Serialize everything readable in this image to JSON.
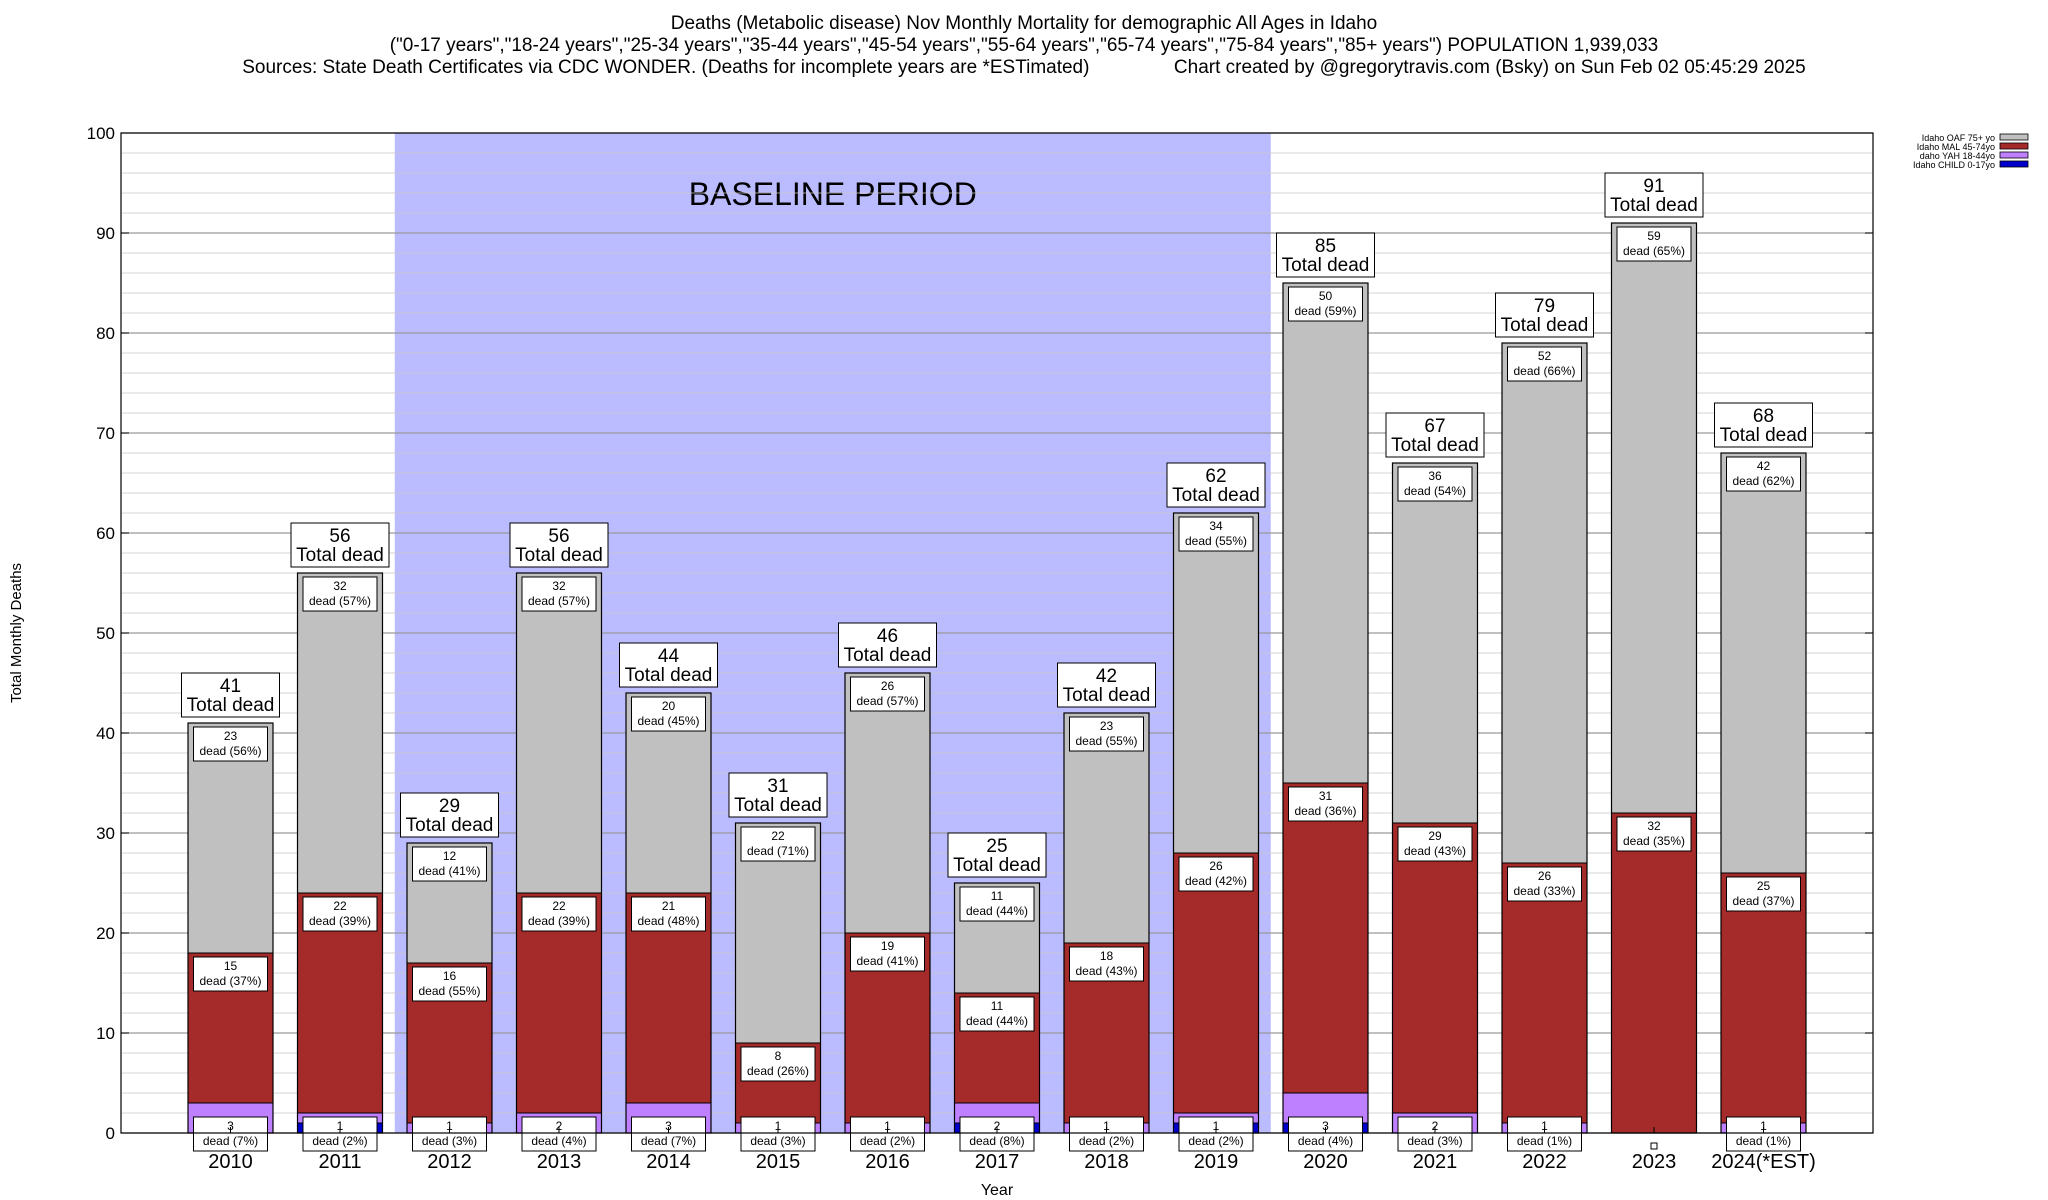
{
  "header": {
    "title_line1": "Deaths (Metabolic disease) Nov Monthly Mortality for demographic All Ages in Idaho",
    "title_line2": "(\"0-17 years\",\"18-24 years\",\"25-34 years\",\"35-44 years\",\"45-54 years\",\"55-64 years\",\"65-74 years\",\"75-84 years\",\"85+ years\") POPULATION 1,939,033",
    "title_line3": "Sources: State Death Certificates via CDC WONDER. (Deaths for incomplete years are *ESTimated)                Chart created by @gregorytravis.com (Bsky) on Sun Feb 02 05:45:29 2025"
  },
  "chart_data": {
    "type": "bar",
    "stacked": true,
    "title": "Deaths (Metabolic disease) Nov Monthly Mortality for demographic All Ages in Idaho",
    "xlabel": "Year",
    "ylabel": "Total Monthly Deaths",
    "ylim": [
      0,
      100
    ],
    "yticks": [
      0,
      10,
      20,
      30,
      40,
      50,
      60,
      70,
      80,
      90,
      100
    ],
    "grid": "horizontal",
    "legend_position": "top-right",
    "categories": [
      "2010",
      "2011",
      "2012",
      "2013",
      "2014",
      "2015",
      "2016",
      "2017",
      "2018",
      "2019",
      "2020",
      "2021",
      "2022",
      "2023",
      "2024(*EST)"
    ],
    "series": [
      {
        "name": "Idaho CHILD 0-17yo",
        "color": "#0000cc",
        "values": [
          0,
          1,
          0,
          0,
          0,
          0,
          0,
          1,
          0,
          1,
          1,
          0,
          0,
          0,
          0
        ]
      },
      {
        "name": "daho YAH 18-44yo",
        "color": "#bf80ff",
        "values": [
          3,
          1,
          1,
          2,
          3,
          1,
          1,
          2,
          1,
          1,
          3,
          2,
          1,
          0,
          1
        ]
      },
      {
        "name": "Idaho MAL 45-74yo",
        "color": "#a52a2a",
        "values": [
          15,
          22,
          16,
          22,
          21,
          8,
          19,
          11,
          18,
          26,
          31,
          29,
          26,
          32,
          25
        ]
      },
      {
        "name": "Idaho OAF 75+ yo",
        "color": "#c0c0c0",
        "values": [
          23,
          32,
          12,
          32,
          20,
          22,
          26,
          11,
          23,
          34,
          50,
          36,
          52,
          59,
          42
        ]
      }
    ],
    "segment_labels": {
      "yah": [
        "3\ndead (7%)",
        "1\ndead (2%)",
        "1\ndead (3%)",
        "2\ndead (4%)",
        "3\ndead (7%)",
        "1\ndead (3%)",
        "1\ndead (2%)",
        "2\ndead (8%)",
        "1\ndead (2%)",
        "1\ndead (2%)",
        "3\ndead (4%)",
        "2\ndead (3%)",
        "1\ndead (1%)",
        "",
        "1\ndead (1%)"
      ],
      "mal": [
        "15\ndead (37%)",
        "22\ndead (39%)",
        "16\ndead (55%)",
        "22\ndead (39%)",
        "21\ndead (48%)",
        "8\ndead (26%)",
        "19\ndead (41%)",
        "11\ndead (44%)",
        "18\ndead (43%)",
        "26\ndead (42%)",
        "31\ndead (36%)",
        "29\ndead (43%)",
        "26\ndead (33%)",
        "32\ndead (35%)",
        "25\ndead (37%)"
      ],
      "oaf": [
        "23\ndead (56%)",
        "32\ndead (57%)",
        "12\ndead (41%)",
        "32\ndead (57%)",
        "20\ndead (45%)",
        "22\ndead (71%)",
        "26\ndead (57%)",
        "11\ndead (44%)",
        "23\ndead (55%)",
        "34\ndead (55%)",
        "50\ndead (59%)",
        "36\ndead (54%)",
        "52\ndead (66%)",
        "59\ndead (65%)",
        "42\ndead (62%)"
      ]
    },
    "totals": [
      41,
      56,
      29,
      56,
      44,
      31,
      46,
      25,
      42,
      62,
      85,
      67,
      79,
      91,
      68
    ],
    "total_suffix": "Total dead",
    "baseline": {
      "label": "BASELINE PERIOD",
      "from": "2012",
      "to": "2019",
      "color": "#bbbbff"
    }
  }
}
